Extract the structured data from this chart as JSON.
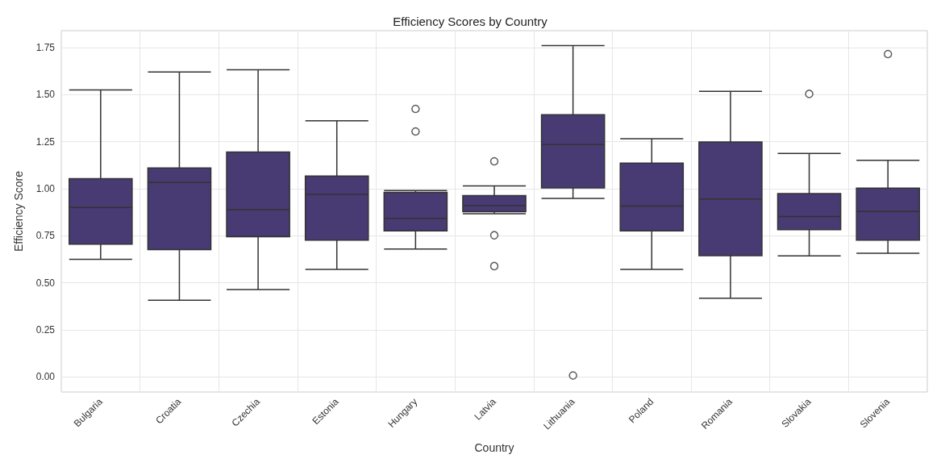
{
  "chart_data": {
    "type": "box",
    "title": "Efficiency Scores by Country",
    "xlabel": "Country",
    "ylabel": "Efficiency Score",
    "categories": [
      "Bulgaria",
      "Croatia",
      "Czechia",
      "Estonia",
      "Hungary",
      "Latvia",
      "Lithuania",
      "Poland",
      "Romania",
      "Slovakia",
      "Slovenia"
    ],
    "color": "#483a73",
    "boxes": [
      {
        "low": 0.625,
        "q1": 0.705,
        "median": 0.9,
        "q3": 1.054,
        "high": 1.525
      },
      {
        "low": 0.407,
        "q1": 0.676,
        "median": 1.033,
        "q3": 1.11,
        "high": 1.62
      },
      {
        "low": 0.464,
        "q1": 0.745,
        "median": 0.889,
        "q3": 1.195,
        "high": 1.632
      },
      {
        "low": 0.571,
        "q1": 0.727,
        "median": 0.97,
        "q3": 1.067,
        "high": 1.361
      },
      {
        "low": 0.68,
        "q1": 0.776,
        "median": 0.843,
        "q3": 0.981,
        "high": 0.99,
        "outliers": [
          1.424,
          1.304
        ]
      },
      {
        "low": 0.867,
        "q1": 0.878,
        "median": 0.911,
        "q3": 0.964,
        "high": 1.015,
        "outliers": [
          1.146,
          0.753,
          0.589
        ]
      },
      {
        "low": 0.949,
        "q1": 1.004,
        "median": 1.235,
        "q3": 1.393,
        "high": 1.761,
        "outliers": [
          0.008
        ]
      },
      {
        "low": 0.571,
        "q1": 0.776,
        "median": 0.908,
        "q3": 1.136,
        "high": 1.266
      },
      {
        "low": 0.418,
        "q1": 0.644,
        "median": 0.945,
        "q3": 1.249,
        "high": 1.518
      },
      {
        "low": 0.643,
        "q1": 0.783,
        "median": 0.852,
        "q3": 0.974,
        "high": 1.187,
        "outliers": [
          1.504
        ]
      },
      {
        "low": 0.657,
        "q1": 0.727,
        "median": 0.879,
        "q3": 1.003,
        "high": 1.151,
        "outliers": [
          1.716
        ]
      }
    ],
    "ylim": [
      -0.08,
      1.84
    ],
    "yticks": [
      {
        "value": 0,
        "label": "0.00"
      },
      {
        "value": 0.25,
        "label": "0.25"
      },
      {
        "value": 0.5,
        "label": "0.50"
      },
      {
        "value": 0.75,
        "label": "0.75"
      },
      {
        "value": 1,
        "label": "1.00"
      },
      {
        "value": 1.25,
        "label": "1.25"
      },
      {
        "value": 1.5,
        "label": "1.50"
      },
      {
        "value": 1.75,
        "label": "1.75"
      }
    ],
    "grid": true
  }
}
